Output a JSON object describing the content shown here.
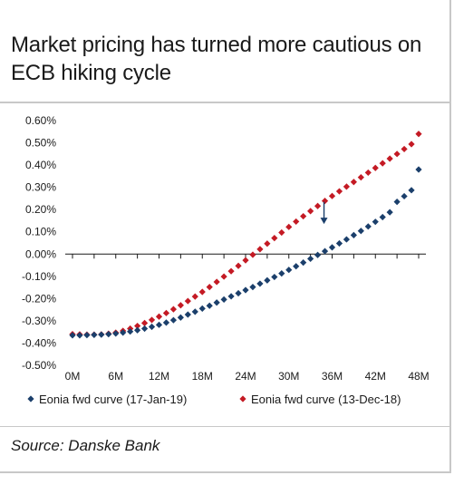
{
  "header": {
    "title": "Market pricing has turned more cautious on ECB hiking cycle"
  },
  "footer": {
    "source": "Source: Danske Bank"
  },
  "colors": {
    "series_blue": "#1b3f6b",
    "series_red": "#c41a24",
    "axis": "#1a1a1a"
  },
  "chart_data": {
    "type": "scatter",
    "title": "Market pricing has turned more cautious on ECB hiking cycle",
    "xlabel": "",
    "ylabel": "",
    "x_ticks": [
      "0M",
      "6M",
      "12M",
      "18M",
      "24M",
      "30M",
      "36M",
      "42M",
      "48M"
    ],
    "x_range": [
      0,
      48
    ],
    "y_ticks": [
      "0.60%",
      "0.50%",
      "0.40%",
      "0.30%",
      "0.20%",
      "0.10%",
      "0.00%",
      "-0.10%",
      "-0.20%",
      "-0.30%",
      "-0.40%",
      "-0.50%"
    ],
    "y_range": [
      -0.5,
      0.6
    ],
    "legend_position": "bottom",
    "grid": false,
    "series": [
      {
        "name": "Eonia fwd curve (17-Jan-19)",
        "color": "#1b3f6b",
        "x": [
          0,
          1,
          2,
          3,
          4,
          5,
          6,
          7,
          8,
          9,
          10,
          11,
          12,
          13,
          14,
          15,
          16,
          17,
          18,
          19,
          20,
          21,
          22,
          23,
          24,
          25,
          26,
          27,
          28,
          29,
          30,
          31,
          32,
          33,
          34,
          35,
          36,
          37,
          38,
          39,
          40,
          41,
          42,
          43,
          44,
          45,
          46,
          47,
          48
        ],
        "y": [
          -0.365,
          -0.365,
          -0.364,
          -0.363,
          -0.362,
          -0.36,
          -0.357,
          -0.353,
          -0.348,
          -0.342,
          -0.335,
          -0.327,
          -0.318,
          -0.308,
          -0.297,
          -0.285,
          -0.272,
          -0.259,
          -0.245,
          -0.232,
          -0.218,
          -0.204,
          -0.19,
          -0.176,
          -0.162,
          -0.148,
          -0.133,
          -0.118,
          -0.103,
          -0.087,
          -0.071,
          -0.055,
          -0.038,
          -0.021,
          -0.004,
          0.013,
          0.03,
          0.048,
          0.066,
          0.085,
          0.104,
          0.124,
          0.145,
          0.166,
          0.188,
          0.235,
          0.26,
          0.287,
          0.38
        ]
      },
      {
        "name": "Eonia fwd curve (13-Dec-18)",
        "color": "#c41a24",
        "x": [
          0,
          1,
          2,
          3,
          4,
          5,
          6,
          7,
          8,
          9,
          10,
          11,
          12,
          13,
          14,
          15,
          16,
          17,
          18,
          19,
          20,
          21,
          22,
          23,
          24,
          25,
          26,
          27,
          28,
          29,
          30,
          31,
          32,
          33,
          34,
          35,
          36,
          37,
          38,
          39,
          40,
          41,
          42,
          43,
          44,
          45,
          46,
          47,
          48
        ],
        "y": [
          -0.36,
          -0.361,
          -0.362,
          -0.362,
          -0.361,
          -0.358,
          -0.353,
          -0.345,
          -0.335,
          -0.323,
          -0.31,
          -0.296,
          -0.281,
          -0.265,
          -0.248,
          -0.23,
          -0.211,
          -0.191,
          -0.17,
          -0.148,
          -0.125,
          -0.101,
          -0.077,
          -0.053,
          -0.028,
          -0.003,
          0.022,
          0.047,
          0.072,
          0.097,
          0.122,
          0.146,
          0.17,
          0.193,
          0.216,
          0.239,
          0.261,
          0.282,
          0.303,
          0.324,
          0.345,
          0.366,
          0.387,
          0.408,
          0.429,
          0.45,
          0.472,
          0.494,
          0.54
        ]
      }
    ],
    "annotation": {
      "type": "arrow-down",
      "x": 35,
      "y_from": 0.235,
      "y_to": 0.135
    }
  }
}
